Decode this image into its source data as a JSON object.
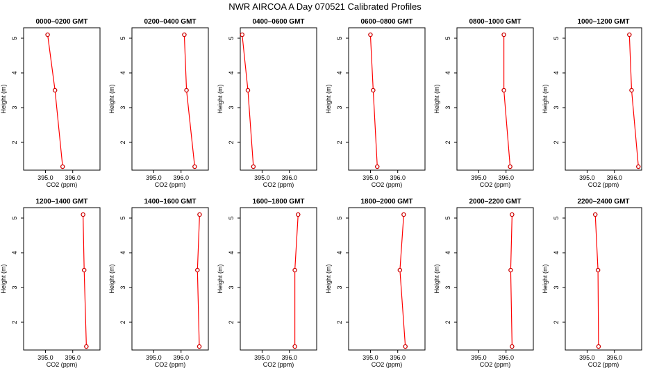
{
  "page": {
    "title": "NWR AIRCOA A  Day 070521  Calibrated Profiles"
  },
  "colors": {
    "line": "#ff0000",
    "marker": "#cc0000",
    "axis": "#000000",
    "background": "#ffffff"
  },
  "chart_data": [
    {
      "type": "line",
      "title": "0000–0200 GMT",
      "xlabel": "CO2 (ppm)",
      "ylabel": "Height (m)",
      "xlim": [
        394.2,
        397.0
      ],
      "ylim": [
        1.2,
        5.3
      ],
      "xticks": [
        "395.0",
        "396.0"
      ],
      "yticks": [
        "2",
        "3",
        "4",
        "5"
      ],
      "grid": false,
      "series": [
        {
          "x": [
            395.08,
            395.35,
            395.63
          ],
          "y": [
            5.1,
            3.5,
            1.3
          ]
        }
      ]
    },
    {
      "type": "line",
      "title": "0200–0400 GMT",
      "xlabel": "CO2 (ppm)",
      "ylabel": "Height (m)",
      "xlim": [
        394.2,
        397.0
      ],
      "ylim": [
        1.2,
        5.3
      ],
      "xticks": [
        "395.0",
        "396.0"
      ],
      "yticks": [
        "2",
        "3",
        "4",
        "5"
      ],
      "grid": false,
      "series": [
        {
          "x": [
            396.12,
            396.2,
            396.5
          ],
          "y": [
            5.1,
            3.5,
            1.3
          ]
        }
      ]
    },
    {
      "type": "line",
      "title": "0400–0600 GMT",
      "xlabel": "CO2 (ppm)",
      "ylabel": "Height (m)",
      "xlim": [
        394.2,
        397.0
      ],
      "ylim": [
        1.2,
        5.3
      ],
      "xticks": [
        "395.0",
        "396.0"
      ],
      "yticks": [
        "2",
        "3",
        "4",
        "5"
      ],
      "grid": false,
      "series": [
        {
          "x": [
            394.27,
            394.48,
            394.68
          ],
          "y": [
            5.1,
            3.5,
            1.3
          ]
        }
      ]
    },
    {
      "type": "line",
      "title": "0600–0800 GMT",
      "xlabel": "CO2 (ppm)",
      "ylabel": "Height (m)",
      "xlim": [
        394.2,
        397.0
      ],
      "ylim": [
        1.2,
        5.3
      ],
      "xticks": [
        "395.0",
        "396.0"
      ],
      "yticks": [
        "2",
        "3",
        "4",
        "5"
      ],
      "grid": false,
      "series": [
        {
          "x": [
            395.0,
            395.1,
            395.25
          ],
          "y": [
            5.1,
            3.5,
            1.3
          ]
        }
      ]
    },
    {
      "type": "line",
      "title": "0800–1000 GMT",
      "xlabel": "CO2 (ppm)",
      "ylabel": "Height (m)",
      "xlim": [
        394.2,
        397.0
      ],
      "ylim": [
        1.2,
        5.3
      ],
      "xticks": [
        "395.0",
        "396.0"
      ],
      "yticks": [
        "2",
        "3",
        "4",
        "5"
      ],
      "grid": false,
      "series": [
        {
          "x": [
            395.92,
            395.92,
            396.15
          ],
          "y": [
            5.1,
            3.5,
            1.3
          ]
        }
      ]
    },
    {
      "type": "line",
      "title": "1000–1200 GMT",
      "xlabel": "CO2 (ppm)",
      "ylabel": "Height (m)",
      "xlim": [
        394.2,
        397.0
      ],
      "ylim": [
        1.2,
        5.3
      ],
      "xticks": [
        "395.0",
        "396.0"
      ],
      "yticks": [
        "2",
        "3",
        "4",
        "5"
      ],
      "grid": false,
      "series": [
        {
          "x": [
            396.55,
            396.63,
            396.88
          ],
          "y": [
            5.1,
            3.5,
            1.3
          ]
        }
      ]
    },
    {
      "type": "line",
      "title": "1200–1400 GMT",
      "xlabel": "CO2 (ppm)",
      "ylabel": "Height (m)",
      "xlim": [
        394.2,
        397.0
      ],
      "ylim": [
        1.2,
        5.3
      ],
      "xticks": [
        "395.0",
        "396.0"
      ],
      "yticks": [
        "2",
        "3",
        "4",
        "5"
      ],
      "grid": false,
      "series": [
        {
          "x": [
            396.38,
            396.42,
            396.5
          ],
          "y": [
            5.1,
            3.5,
            1.3
          ]
        }
      ]
    },
    {
      "type": "line",
      "title": "1400–1600 GMT",
      "xlabel": "CO2 (ppm)",
      "ylabel": "Height (m)",
      "xlim": [
        394.2,
        397.0
      ],
      "ylim": [
        1.2,
        5.3
      ],
      "xticks": [
        "395.0",
        "396.0"
      ],
      "yticks": [
        "2",
        "3",
        "4",
        "5"
      ],
      "grid": false,
      "series": [
        {
          "x": [
            396.68,
            396.6,
            396.67
          ],
          "y": [
            5.1,
            3.5,
            1.3
          ]
        }
      ]
    },
    {
      "type": "line",
      "title": "1600–1800 GMT",
      "xlabel": "CO2 (ppm)",
      "ylabel": "Height (m)",
      "xlim": [
        394.2,
        397.0
      ],
      "ylim": [
        1.2,
        5.3
      ],
      "xticks": [
        "395.0",
        "396.0"
      ],
      "yticks": [
        "2",
        "3",
        "4",
        "5"
      ],
      "grid": false,
      "series": [
        {
          "x": [
            396.32,
            396.2,
            396.2
          ],
          "y": [
            5.1,
            3.5,
            1.3
          ]
        }
      ]
    },
    {
      "type": "line",
      "title": "1800–2000 GMT",
      "xlabel": "CO2 (ppm)",
      "ylabel": "Height (m)",
      "xlim": [
        394.2,
        397.0
      ],
      "ylim": [
        1.2,
        5.3
      ],
      "xticks": [
        "395.0",
        "396.0"
      ],
      "yticks": [
        "2",
        "3",
        "4",
        "5"
      ],
      "grid": false,
      "series": [
        {
          "x": [
            396.22,
            396.08,
            396.28
          ],
          "y": [
            5.1,
            3.5,
            1.3
          ]
        }
      ]
    },
    {
      "type": "line",
      "title": "2000–2200 GMT",
      "xlabel": "CO2 (ppm)",
      "ylabel": "Height (m)",
      "xlim": [
        394.2,
        397.0
      ],
      "ylim": [
        1.2,
        5.3
      ],
      "xticks": [
        "395.0",
        "396.0"
      ],
      "yticks": [
        "2",
        "3",
        "4",
        "5"
      ],
      "grid": false,
      "series": [
        {
          "x": [
            396.22,
            396.17,
            396.22
          ],
          "y": [
            5.1,
            3.5,
            1.3
          ]
        }
      ]
    },
    {
      "type": "line",
      "title": "2200–2400 GMT",
      "xlabel": "CO2 (ppm)",
      "ylabel": "Height (m)",
      "xlim": [
        394.2,
        397.0
      ],
      "ylim": [
        1.2,
        5.3
      ],
      "xticks": [
        "395.0",
        "396.0"
      ],
      "yticks": [
        "2",
        "3",
        "4",
        "5"
      ],
      "grid": false,
      "series": [
        {
          "x": [
            395.3,
            395.4,
            395.42
          ],
          "y": [
            5.1,
            3.5,
            1.3
          ]
        }
      ]
    }
  ]
}
